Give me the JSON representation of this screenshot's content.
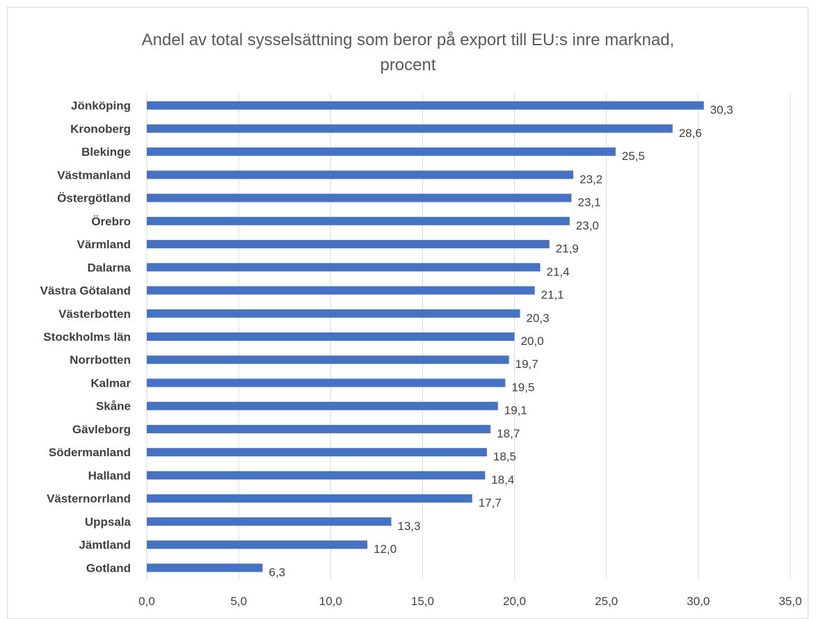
{
  "chart_data": {
    "type": "bar",
    "orientation": "horizontal",
    "title_lines": [
      "Andel av total sysselsättning som beror på export till EU:s inre marknad,",
      "procent"
    ],
    "categories": [
      "Jönköping",
      "Kronoberg",
      "Blekinge",
      "Västmanland",
      "Östergötland",
      "Örebro",
      "Värmland",
      "Dalarna",
      "Västra Götaland",
      "Västerbotten",
      "Stockholms län",
      "Norrbotten",
      "Kalmar",
      "Skåne",
      "Gävleborg",
      "Södermanland",
      "Halland",
      "Västernorrland",
      "Uppsala",
      "Jämtland",
      "Gotland"
    ],
    "values": [
      30.3,
      28.6,
      25.5,
      23.2,
      23.1,
      23.0,
      21.9,
      21.4,
      21.1,
      20.3,
      20.0,
      19.7,
      19.5,
      19.1,
      18.7,
      18.5,
      18.4,
      17.7,
      13.3,
      12.0,
      6.3
    ],
    "value_labels": [
      "30,3",
      "28,6",
      "25,5",
      "23,2",
      "23,1",
      "23,0",
      "21,9",
      "21,4",
      "21,1",
      "20,3",
      "20,0",
      "19,7",
      "19,5",
      "19,1",
      "18,7",
      "18,5",
      "18,4",
      "17,7",
      "13,3",
      "12,0",
      "6,3"
    ],
    "x_ticks": [
      0,
      5,
      10,
      15,
      20,
      25,
      30,
      35
    ],
    "x_tick_labels": [
      "0,0",
      "5,0",
      "10,0",
      "15,0",
      "20,0",
      "25,0",
      "30,0",
      "35,0"
    ],
    "xlim": [
      0,
      35
    ],
    "grid": "vertical",
    "legend": "none",
    "bar_color": "#4472c4",
    "grid_color": "#d9d9d9"
  }
}
